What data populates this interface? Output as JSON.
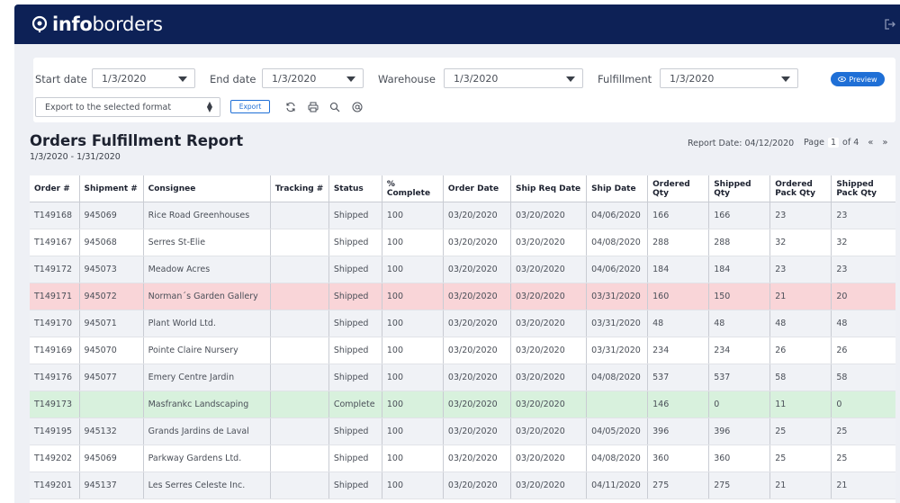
{
  "app": {
    "brand_bold": "info",
    "brand_light": "borders"
  },
  "filters": {
    "start_date": {
      "label": "Start date",
      "value": "1/3/2020"
    },
    "end_date": {
      "label": "End date",
      "value": "1/3/2020"
    },
    "warehouse": {
      "label": "Warehouse",
      "value": "1/3/2020"
    },
    "fulfillment": {
      "label": "Fulfillment",
      "value": "1/3/2020"
    },
    "preview_label": "Preview",
    "export_format": "Export to the selected format",
    "export_label": "Export"
  },
  "report": {
    "title": "Orders Fulfillment Report",
    "range": "1/3/2020 - 1/31/2020",
    "report_date": "Report Date: 04/12/2020",
    "page_label": "Page",
    "page_current": "1",
    "page_of": "of 4"
  },
  "table": {
    "headers": [
      "Order #",
      "Shipment #",
      "Consignee",
      "Tracking #",
      "Status",
      "% Complete",
      "Order Date",
      "Ship Req Date",
      "Ship Date",
      "Ordered Qty",
      "Shipped Qty",
      "Ordered Pack Qty",
      "Shipped Pack Qty"
    ],
    "rows": [
      {
        "style": "even",
        "cells": [
          "T149168",
          "945069",
          "Rice Road Greenhouses",
          "",
          "Shipped",
          "100",
          "03/20/2020",
          "03/20/2020",
          "04/06/2020",
          "166",
          "166",
          "23",
          "23"
        ]
      },
      {
        "style": "odd",
        "cells": [
          "T149167",
          "945068",
          "Serres St-Elie",
          "",
          "Shipped",
          "100",
          "03/20/2020",
          "03/20/2020",
          "04/08/2020",
          "288",
          "288",
          "32",
          "32"
        ]
      },
      {
        "style": "even",
        "cells": [
          "T149172",
          "945073",
          "Meadow Acres",
          "",
          "Shipped",
          "100",
          "03/20/2020",
          "03/20/2020",
          "04/06/2020",
          "184",
          "184",
          "23",
          "23"
        ]
      },
      {
        "style": "red",
        "cells": [
          "T149171",
          "945072",
          "Norman´s Garden Gallery",
          "",
          "Shipped",
          "100",
          "03/20/2020",
          "03/20/2020",
          "03/31/2020",
          "160",
          "150",
          "21",
          "20"
        ]
      },
      {
        "style": "even",
        "cells": [
          "T149170",
          "945071",
          "Plant World Ltd.",
          "",
          "Shipped",
          "100",
          "03/20/2020",
          "03/20/2020",
          "03/31/2020",
          "48",
          "48",
          "48",
          "48"
        ]
      },
      {
        "style": "odd",
        "cells": [
          "T149169",
          "945070",
          "Pointe Claire Nursery",
          "",
          "Shipped",
          "100",
          "03/20/2020",
          "03/20/2020",
          "03/31/2020",
          "234",
          "234",
          "26",
          "26"
        ]
      },
      {
        "style": "even",
        "cells": [
          "T149176",
          "945077",
          "Emery Centre Jardin",
          "",
          "Shipped",
          "100",
          "03/20/2020",
          "03/20/2020",
          "04/08/2020",
          "537",
          "537",
          "58",
          "58"
        ]
      },
      {
        "style": "green",
        "cells": [
          "T149173",
          "",
          "Masfrankc Landscaping",
          "",
          "Complete",
          "100",
          "03/20/2020",
          "03/20/2020",
          "",
          "146",
          "0",
          "11",
          "0"
        ]
      },
      {
        "style": "even",
        "cells": [
          "T149195",
          "945132",
          "Grands Jardins de Laval",
          "",
          "Shipped",
          "100",
          "03/20/2020",
          "03/20/2020",
          "04/05/2020",
          "396",
          "396",
          "25",
          "25"
        ]
      },
      {
        "style": "odd",
        "cells": [
          "T149202",
          "945069",
          "Parkway Gardens Ltd.",
          "",
          "Shipped",
          "100",
          "03/20/2020",
          "03/20/2020",
          "04/08/2020",
          "360",
          "360",
          "25",
          "25"
        ]
      },
      {
        "style": "even",
        "cells": [
          "T149201",
          "945137",
          "Les Serres Celeste Inc.",
          "",
          "Shipped",
          "100",
          "03/20/2020",
          "03/20/2020",
          "04/11/2020",
          "275",
          "275",
          "21",
          "21"
        ]
      }
    ]
  },
  "colors": {
    "topbar": "#0d2156",
    "accent": "#1f6fd6",
    "row_alert": "#f9d5d8",
    "row_complete": "#d8f1dd"
  },
  "icons": [
    "logo-pin-icon",
    "logout-icon",
    "refresh-icon",
    "print-icon",
    "zoom-icon",
    "email-icon",
    "eye-icon",
    "chevron-down-icon",
    "first-page-icon",
    "next-page-icon"
  ]
}
